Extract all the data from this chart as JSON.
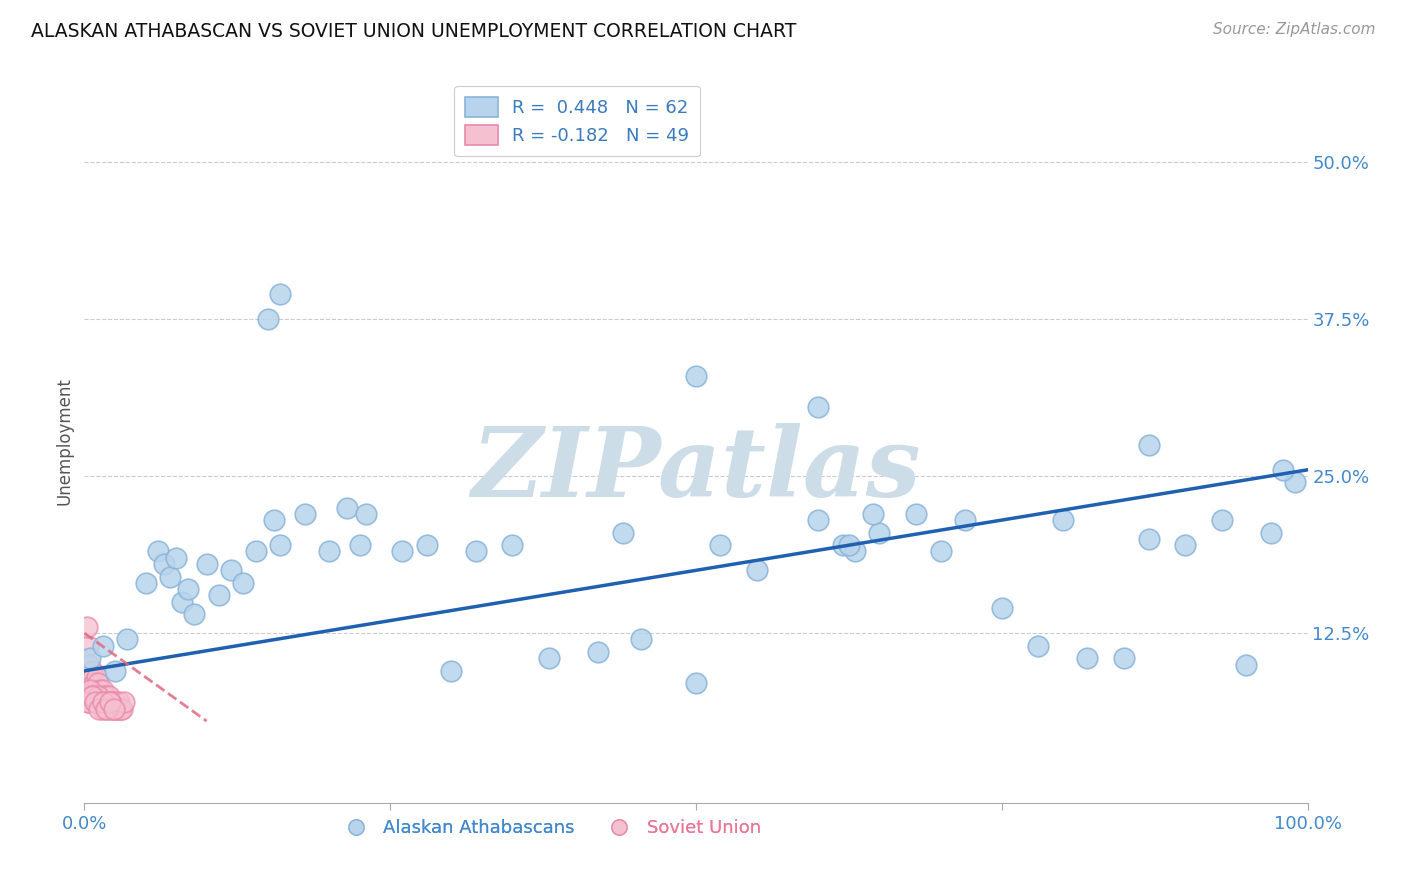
{
  "title": "ALASKAN ATHABASCAN VS SOVIET UNION UNEMPLOYMENT CORRELATION CHART",
  "source": "Source: ZipAtlas.com",
  "ylabel": "Unemployment",
  "y_ticks": [
    0.0,
    0.125,
    0.25,
    0.375,
    0.5
  ],
  "y_tick_labels": [
    "",
    "12.5%",
    "25.0%",
    "37.5%",
    "50.0%"
  ],
  "xlim": [
    0.0,
    1.0
  ],
  "ylim": [
    -0.01,
    0.565
  ],
  "blue_R": 0.448,
  "blue_N": 62,
  "pink_R": -0.182,
  "pink_N": 49,
  "blue_color": "#b8d4ec",
  "blue_edge": "#8ab4d8",
  "pink_color": "#f5c0d0",
  "pink_edge": "#e88aaa",
  "regression_blue_color": "#2060b0",
  "regression_pink_color": "#e06880",
  "blue_line_x0": 0.0,
  "blue_line_y0": 0.095,
  "blue_line_x1": 1.0,
  "blue_line_y1": 0.255,
  "pink_line_x0": 0.0,
  "pink_line_y0": 0.125,
  "pink_line_x1": 0.1,
  "pink_line_y1": 0.055,
  "watermark": "ZIPatlas",
  "watermark_color": "#ccdde8",
  "background_color": "#ffffff",
  "grid_color": "#cccccc",
  "blue_x": [
    0.005,
    0.015,
    0.025,
    0.035,
    0.05,
    0.06,
    0.065,
    0.07,
    0.075,
    0.08,
    0.085,
    0.09,
    0.1,
    0.11,
    0.12,
    0.13,
    0.14,
    0.155,
    0.16,
    0.18,
    0.2,
    0.215,
    0.225,
    0.23,
    0.26,
    0.28,
    0.3,
    0.32,
    0.35,
    0.38,
    0.42,
    0.455,
    0.5,
    0.52,
    0.55,
    0.6,
    0.62,
    0.63,
    0.65,
    0.68,
    0.7,
    0.72,
    0.75,
    0.78,
    0.8,
    0.82,
    0.85,
    0.87,
    0.9,
    0.93,
    0.95,
    0.97,
    0.99,
    0.44,
    0.625,
    0.645,
    0.6,
    0.5,
    0.16,
    0.98,
    0.87,
    0.15
  ],
  "blue_y": [
    0.105,
    0.115,
    0.095,
    0.12,
    0.165,
    0.19,
    0.18,
    0.17,
    0.185,
    0.15,
    0.16,
    0.14,
    0.18,
    0.155,
    0.175,
    0.165,
    0.19,
    0.215,
    0.195,
    0.22,
    0.19,
    0.225,
    0.195,
    0.22,
    0.19,
    0.195,
    0.095,
    0.19,
    0.195,
    0.105,
    0.11,
    0.12,
    0.085,
    0.195,
    0.175,
    0.215,
    0.195,
    0.19,
    0.205,
    0.22,
    0.19,
    0.215,
    0.145,
    0.115,
    0.215,
    0.105,
    0.105,
    0.2,
    0.195,
    0.215,
    0.1,
    0.205,
    0.245,
    0.205,
    0.195,
    0.22,
    0.305,
    0.33,
    0.395,
    0.255,
    0.275,
    0.375
  ],
  "pink_x": [
    0.003,
    0.004,
    0.005,
    0.006,
    0.007,
    0.008,
    0.009,
    0.01,
    0.011,
    0.012,
    0.013,
    0.014,
    0.015,
    0.016,
    0.017,
    0.018,
    0.019,
    0.02,
    0.021,
    0.022,
    0.023,
    0.024,
    0.025,
    0.026,
    0.027,
    0.028,
    0.029,
    0.03,
    0.031,
    0.032,
    0.003,
    0.005,
    0.007,
    0.009,
    0.011,
    0.013,
    0.015,
    0.017,
    0.019,
    0.021,
    0.003,
    0.006,
    0.009,
    0.012,
    0.015,
    0.018,
    0.021,
    0.024,
    0.002
  ],
  "pink_y": [
    0.115,
    0.1,
    0.085,
    0.095,
    0.09,
    0.085,
    0.08,
    0.09,
    0.085,
    0.075,
    0.08,
    0.075,
    0.08,
    0.075,
    0.07,
    0.075,
    0.07,
    0.075,
    0.07,
    0.065,
    0.07,
    0.065,
    0.07,
    0.065,
    0.065,
    0.07,
    0.065,
    0.065,
    0.065,
    0.07,
    0.07,
    0.08,
    0.075,
    0.07,
    0.075,
    0.07,
    0.065,
    0.07,
    0.065,
    0.07,
    0.07,
    0.075,
    0.07,
    0.065,
    0.07,
    0.065,
    0.07,
    0.065,
    0.13
  ]
}
